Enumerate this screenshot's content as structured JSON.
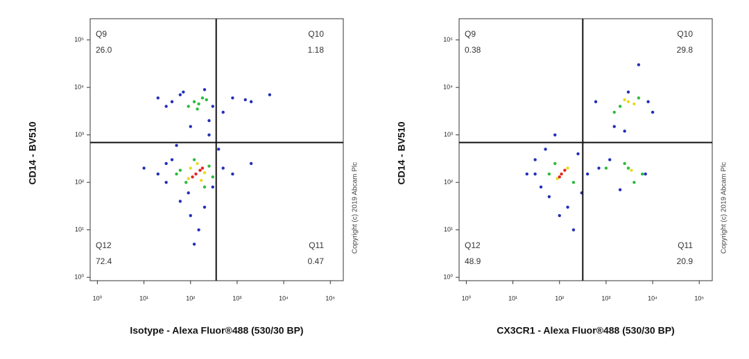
{
  "chart_data": [
    {
      "type": "scatter",
      "xscale": "log",
      "yscale": "log",
      "xlabel": "Isotype - Alexa Fluor®488 (530/30 BP)",
      "ylabel": "CD14 - BV510",
      "annotation": "Copyright (c) 2019 Abcam Plc",
      "xlim": [
        0.7,
        190000
      ],
      "ylim": [
        0.85,
        280000
      ],
      "xticks": [
        {
          "value": 1,
          "label": "10⁰"
        },
        {
          "value": 10,
          "label": "10¹"
        },
        {
          "value": 100,
          "label": "10²"
        },
        {
          "value": 1000,
          "label": "10³"
        },
        {
          "value": 10000,
          "label": "10⁴"
        },
        {
          "value": 100000,
          "label": "10⁵"
        }
      ],
      "yticks": [
        {
          "value": 1,
          "label": "10⁰"
        },
        {
          "value": 10,
          "label": "10¹"
        },
        {
          "value": 100,
          "label": "10²"
        },
        {
          "value": 1000,
          "label": "10³"
        },
        {
          "value": 10000,
          "label": "10⁴"
        },
        {
          "value": 100000,
          "label": "10⁵"
        }
      ],
      "gate": {
        "x": 355,
        "y": 690
      },
      "quadrants": {
        "names": [
          "Q9",
          "Q10",
          "Q11",
          "Q12"
        ],
        "values": [
          26,
          1.18,
          0.47,
          72.4
        ],
        "value_labels": [
          "26.0",
          "1.18",
          "0.47",
          "72.4"
        ]
      },
      "series": [
        {
          "color": "#2230b8",
          "x": [
            20,
            40,
            60,
            300,
            800,
            2000,
            5000,
            30,
            500,
            1500,
            250,
            100,
            70,
            200,
            10,
            20,
            30,
            40,
            500,
            800,
            300,
            200,
            100,
            60,
            150,
            120,
            2000,
            50,
            400,
            90,
            250,
            30
          ],
          "y": [
            6000,
            5000,
            7000,
            4000,
            6000,
            5000,
            7000,
            4000,
            3000,
            5500,
            2000,
            1500,
            8000,
            9000,
            200,
            150,
            100,
            300,
            200,
            150,
            80,
            30,
            20,
            40,
            10,
            5,
            250,
            600,
            500,
            60,
            1000,
            250
          ]
        },
        {
          "color": "#2dbb3a",
          "x": [
            120,
            180,
            90,
            220,
            150,
            140,
            60,
            250,
            80,
            300,
            200,
            120,
            50
          ],
          "y": [
            5000,
            6000,
            4000,
            5500,
            4500,
            3500,
            180,
            220,
            100,
            130,
            80,
            300,
            150
          ]
        },
        {
          "color": "#e6dc1e",
          "x": [
            90,
            200,
            140,
            170,
            100
          ],
          "y": [
            120,
            160,
            250,
            110,
            200
          ]
        },
        {
          "color": "#e5261e",
          "x": [
            130,
            160,
            110,
            180
          ],
          "y": [
            150,
            180,
            130,
            200
          ]
        }
      ]
    },
    {
      "type": "scatter",
      "xscale": "log",
      "yscale": "log",
      "xlabel": "CX3CR1 - Alexa Fluor®488 (530/30 BP)",
      "ylabel": "CD14 - BV510",
      "annotation": "Copyright (c) 2019 Abcam Plc",
      "xlim": [
        0.7,
        190000
      ],
      "ylim": [
        0.85,
        280000
      ],
      "xticks": [
        {
          "value": 1,
          "label": "10⁰"
        },
        {
          "value": 10,
          "label": "10¹"
        },
        {
          "value": 100,
          "label": "10²"
        },
        {
          "value": 1000,
          "label": "10³"
        },
        {
          "value": 10000,
          "label": "10⁴"
        },
        {
          "value": 100000,
          "label": "10⁵"
        }
      ],
      "yticks": [
        {
          "value": 1,
          "label": "10⁰"
        },
        {
          "value": 10,
          "label": "10¹"
        },
        {
          "value": 100,
          "label": "10²"
        },
        {
          "value": 1000,
          "label": "10³"
        },
        {
          "value": 10000,
          "label": "10⁴"
        },
        {
          "value": 100000,
          "label": "10⁵"
        }
      ],
      "gate": {
        "x": 316,
        "y": 690
      },
      "quadrants": {
        "names": [
          "Q9",
          "Q10",
          "Q11",
          "Q12"
        ],
        "values": [
          0.38,
          29.8,
          20.9,
          48.9
        ],
        "value_labels": [
          "0.38",
          "29.8",
          "20.9",
          "48.9"
        ]
      },
      "series": [
        {
          "color": "#2230b8",
          "x": [
            20,
            30,
            40,
            50,
            300,
            150,
            200,
            100,
            80,
            1500,
            8000,
            10000,
            3000,
            700,
            2000,
            600,
            5000,
            1200,
            400,
            250,
            60,
            30,
            2500,
            7000
          ],
          "y": [
            150,
            300,
            80,
            500,
            60,
            30,
            10,
            20,
            1000,
            1500,
            5000,
            3000,
            8000,
            200,
            70,
            5000,
            30000,
            300,
            150,
            400,
            50,
            150,
            1200,
            150
          ]
        },
        {
          "color": "#2dbb3a",
          "x": [
            2000,
            5000,
            1500,
            3000,
            6000,
            2500,
            60,
            200,
            80,
            1000,
            4000
          ],
          "y": [
            4000,
            6000,
            3000,
            200,
            150,
            250,
            150,
            100,
            250,
            200,
            100
          ]
        },
        {
          "color": "#e6dc1e",
          "x": [
            3000,
            2500,
            4000,
            90,
            150,
            3500
          ],
          "y": [
            5000,
            5500,
            4500,
            120,
            200,
            180
          ]
        },
        {
          "color": "#e5261e",
          "x": [
            110,
            130,
            100
          ],
          "y": [
            150,
            180,
            130
          ]
        }
      ]
    }
  ]
}
